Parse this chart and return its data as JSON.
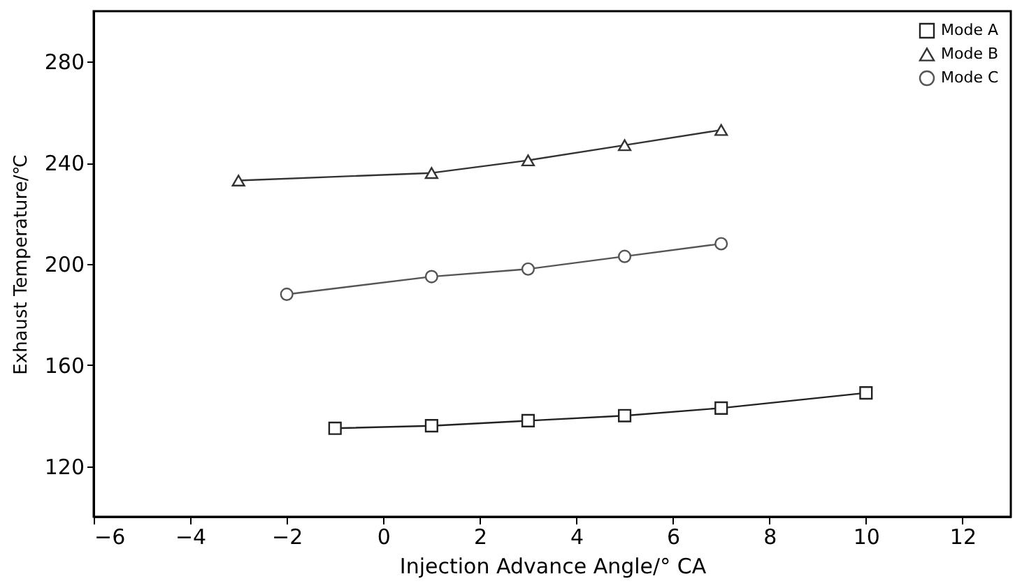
{
  "chart_data": {
    "type": "line",
    "xlabel": "Injection Advance Angle/°  CA",
    "ylabel": "Exhaust Temperature/℃",
    "xlim": [
      -6,
      13
    ],
    "xticks": [
      -6,
      -4,
      -2,
      0,
      2,
      4,
      6,
      8,
      10,
      12
    ],
    "ylim": [
      100,
      300
    ],
    "yticks": [
      120,
      160,
      200,
      240,
      280
    ],
    "grid": false,
    "legend": "top right",
    "line_style": "solid",
    "series": [
      {
        "name": "Mode A",
        "color": "#222222",
        "marker": "square",
        "x": [
          -1,
          1,
          3,
          5,
          7,
          10
        ],
        "values": [
          135,
          136,
          138,
          140,
          143,
          149
        ]
      },
      {
        "name": "Mode B",
        "color": "#333333",
        "marker": "triangle",
        "x": [
          -3,
          1,
          3,
          5,
          7
        ],
        "values": [
          233,
          236,
          241,
          247,
          253
        ]
      },
      {
        "name": "Mode C",
        "color": "#555555",
        "marker": "circle",
        "x": [
          -2,
          1,
          3,
          5,
          7
        ],
        "values": [
          188,
          195,
          198,
          203,
          208
        ]
      }
    ]
  }
}
